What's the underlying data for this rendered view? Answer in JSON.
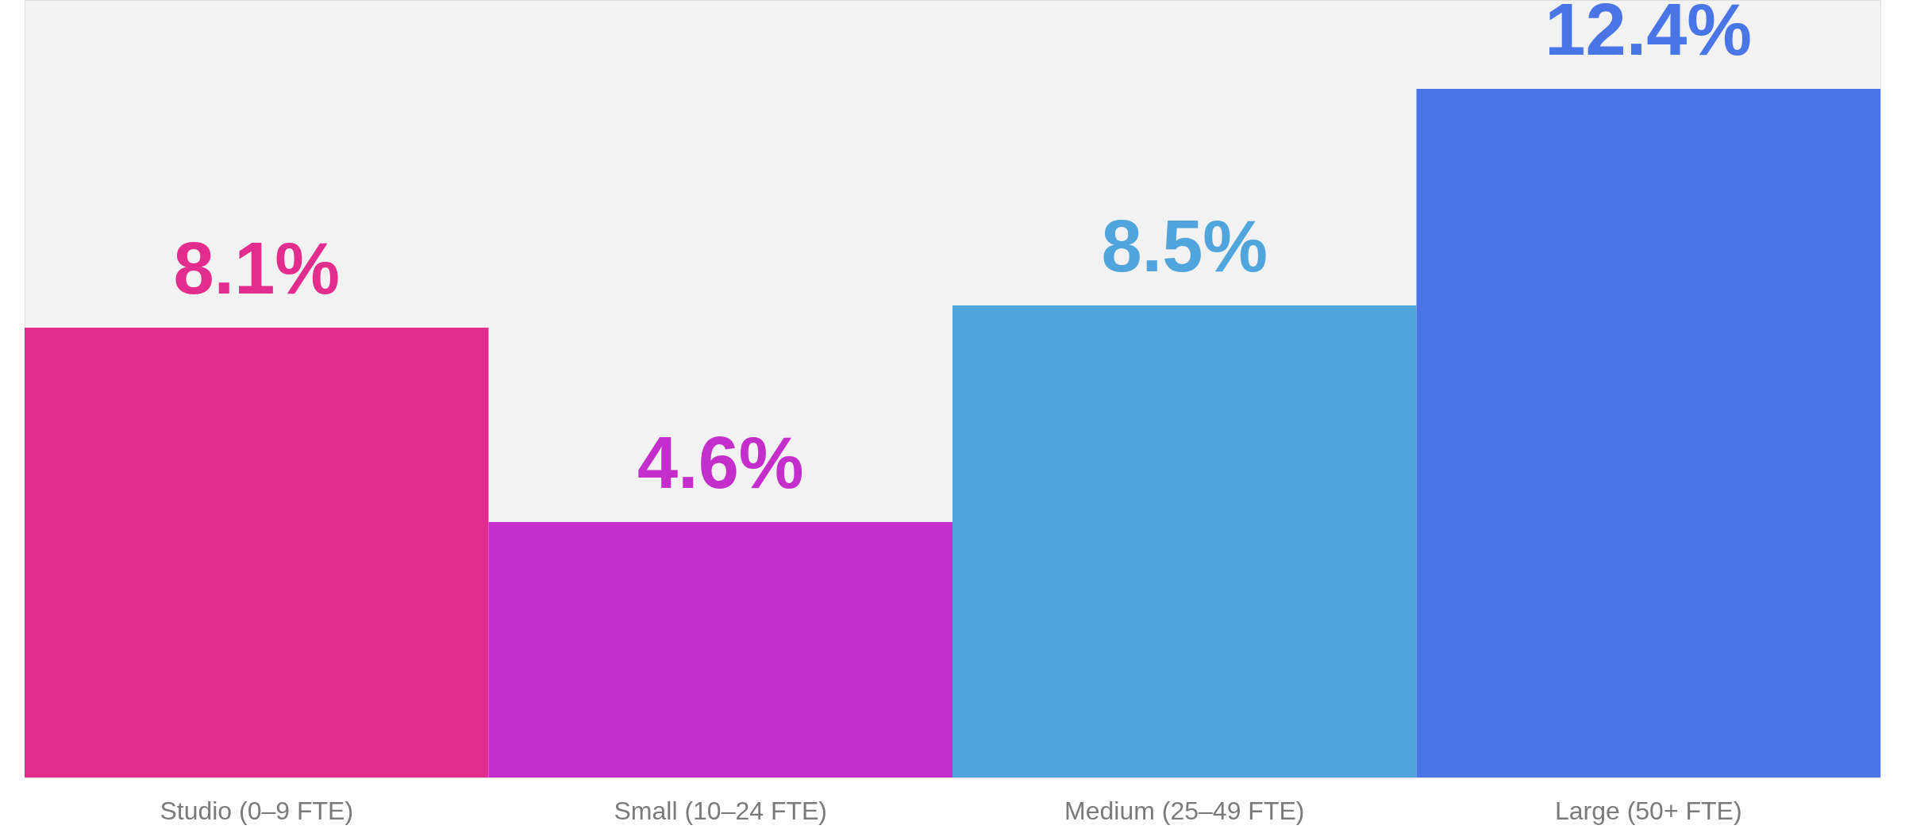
{
  "chart_data": {
    "type": "bar",
    "categories": [
      "Studio (0–9 FTE)",
      "Small (10–24 FTE)",
      "Medium (25–49 FTE)",
      "Large (50+ FTE)"
    ],
    "values": [
      8.1,
      4.6,
      8.5,
      12.4
    ],
    "colors": [
      "#e32d8e",
      "#c42ecb",
      "#50a6dc",
      "#4975e6"
    ],
    "value_labels": [
      "8.1%",
      "4.6%",
      "8.5%",
      "12.4%"
    ],
    "tick_labels": "x",
    "legend": false
  }
}
